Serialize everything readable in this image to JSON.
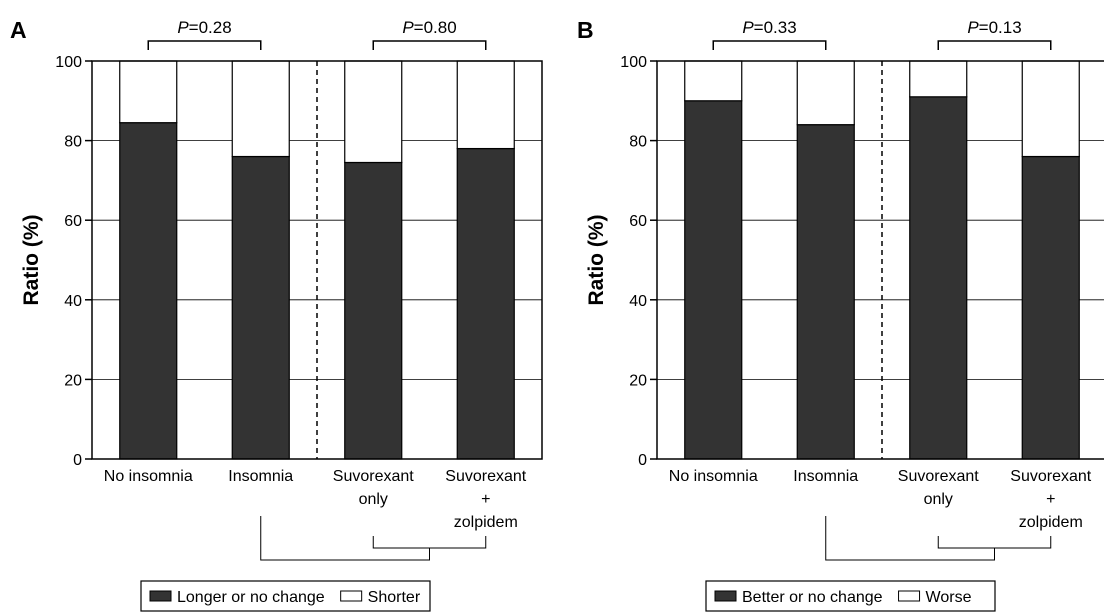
{
  "chart_data": [
    {
      "panel_label": "A",
      "type": "bar",
      "stacked": true,
      "categories": [
        [
          "No insomnia"
        ],
        [
          "Insomnia"
        ],
        [
          "Suvorexant",
          "only"
        ],
        [
          "Suvorexant",
          "+",
          "zolpidem"
        ]
      ],
      "series": [
        {
          "name": "Longer or no change",
          "color": "#333333",
          "values": [
            84.5,
            76.0,
            74.5,
            78.0
          ]
        },
        {
          "name": "Shorter",
          "color": "#ffffff",
          "values": [
            15.5,
            24.0,
            25.5,
            22.0
          ]
        }
      ],
      "ylabel": "Ratio (%)",
      "ylim": [
        0,
        100
      ],
      "yticks": [
        0,
        20,
        40,
        60,
        80,
        100
      ],
      "grid": true,
      "p_values": [
        {
          "prefix": "P",
          "text": "=0.28",
          "between": [
            0,
            1
          ]
        },
        {
          "prefix": "P",
          "text": "=0.80",
          "between": [
            2,
            3
          ]
        }
      ],
      "legend_position": "bottom"
    },
    {
      "panel_label": "B",
      "type": "bar",
      "stacked": true,
      "categories": [
        [
          "No insomnia"
        ],
        [
          "Insomnia"
        ],
        [
          "Suvorexant",
          "only"
        ],
        [
          "Suvorexant",
          "+",
          "zolpidem"
        ]
      ],
      "series": [
        {
          "name": "Better or no change",
          "color": "#333333",
          "values": [
            90.0,
            84.0,
            91.0,
            76.0
          ]
        },
        {
          "name": "Worse",
          "color": "#ffffff",
          "values": [
            10.0,
            16.0,
            9.0,
            24.0
          ]
        }
      ],
      "ylabel": "Ratio (%)",
      "ylim": [
        0,
        100
      ],
      "yticks": [
        0,
        20,
        40,
        60,
        80,
        100
      ],
      "grid": true,
      "p_values": [
        {
          "prefix": "P",
          "text": "=0.33",
          "between": [
            0,
            1
          ]
        },
        {
          "prefix": "P",
          "text": "=0.13",
          "between": [
            2,
            3
          ]
        }
      ],
      "legend_position": "bottom"
    }
  ]
}
